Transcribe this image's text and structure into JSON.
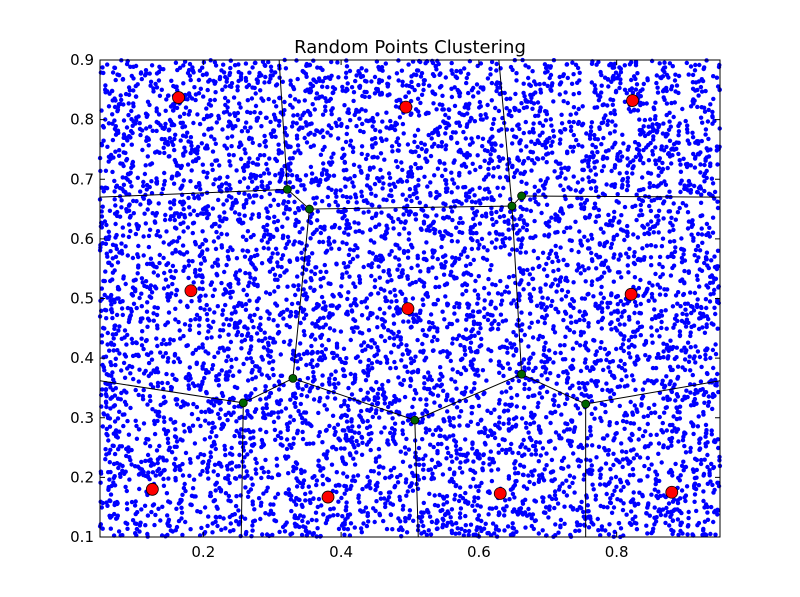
{
  "chart_data": {
    "type": "scatter",
    "title": "Random Points Clustering",
    "xlabel": "",
    "ylabel": "",
    "xlim": [
      0.05,
      0.95
    ],
    "ylim": [
      0.1,
      0.9
    ],
    "grid": false,
    "xticks": [
      "0.2",
      "0.4",
      "0.6",
      "0.8"
    ],
    "xtick_values": [
      0.2,
      0.4,
      0.6,
      0.8
    ],
    "yticks": [
      "0.1",
      "0.2",
      "0.3",
      "0.4",
      "0.5",
      "0.6",
      "0.7",
      "0.8",
      "0.9"
    ],
    "ytick_values": [
      0.1,
      0.2,
      0.3,
      0.4,
      0.5,
      0.6,
      0.7,
      0.8,
      0.9
    ],
    "points_color": "#0000ff",
    "approx_point_count": 7000,
    "centroid_color": "#ff0000",
    "vertex_color": "#006400",
    "edge_color": "#000000",
    "centroids": [
      {
        "x": 0.164,
        "y": 0.837
      },
      {
        "x": 0.494,
        "y": 0.821
      },
      {
        "x": 0.823,
        "y": 0.832
      },
      {
        "x": 0.182,
        "y": 0.513
      },
      {
        "x": 0.497,
        "y": 0.483
      },
      {
        "x": 0.821,
        "y": 0.507
      },
      {
        "x": 0.126,
        "y": 0.18
      },
      {
        "x": 0.381,
        "y": 0.167
      },
      {
        "x": 0.631,
        "y": 0.173
      },
      {
        "x": 0.88,
        "y": 0.175
      }
    ],
    "vertices": [
      {
        "x": 0.322,
        "y": 0.683
      },
      {
        "x": 0.354,
        "y": 0.65
      },
      {
        "x": 0.648,
        "y": 0.655
      },
      {
        "x": 0.662,
        "y": 0.672
      },
      {
        "x": 0.33,
        "y": 0.366
      },
      {
        "x": 0.258,
        "y": 0.325
      },
      {
        "x": 0.507,
        "y": 0.296
      },
      {
        "x": 0.662,
        "y": 0.373
      },
      {
        "x": 0.755,
        "y": 0.323
      }
    ],
    "edges": [
      [
        [
          0.05,
          0.67
        ],
        [
          0.322,
          0.683
        ]
      ],
      [
        [
          0.31,
          0.9
        ],
        [
          0.322,
          0.683
        ]
      ],
      [
        [
          0.322,
          0.683
        ],
        [
          0.354,
          0.65
        ]
      ],
      [
        [
          0.354,
          0.65
        ],
        [
          0.648,
          0.655
        ]
      ],
      [
        [
          0.629,
          0.9
        ],
        [
          0.648,
          0.655
        ]
      ],
      [
        [
          0.648,
          0.655
        ],
        [
          0.662,
          0.672
        ]
      ],
      [
        [
          0.662,
          0.672
        ],
        [
          0.95,
          0.67
        ]
      ],
      [
        [
          0.354,
          0.65
        ],
        [
          0.33,
          0.366
        ]
      ],
      [
        [
          0.648,
          0.655
        ],
        [
          0.662,
          0.373
        ]
      ],
      [
        [
          0.05,
          0.362
        ],
        [
          0.258,
          0.325
        ]
      ],
      [
        [
          0.258,
          0.325
        ],
        [
          0.33,
          0.366
        ]
      ],
      [
        [
          0.258,
          0.325
        ],
        [
          0.255,
          0.1
        ]
      ],
      [
        [
          0.33,
          0.366
        ],
        [
          0.507,
          0.296
        ]
      ],
      [
        [
          0.507,
          0.296
        ],
        [
          0.662,
          0.373
        ]
      ],
      [
        [
          0.507,
          0.296
        ],
        [
          0.512,
          0.1
        ]
      ],
      [
        [
          0.662,
          0.373
        ],
        [
          0.755,
          0.323
        ]
      ],
      [
        [
          0.755,
          0.323
        ],
        [
          0.755,
          0.1
        ]
      ],
      [
        [
          0.755,
          0.323
        ],
        [
          0.95,
          0.362
        ]
      ]
    ]
  }
}
